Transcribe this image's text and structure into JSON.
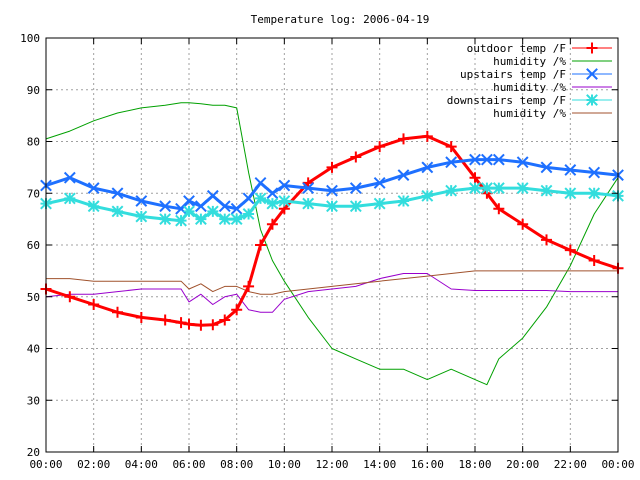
{
  "chart_data": {
    "type": "line",
    "title": "Temperature log: 2006-04-19",
    "xlabel": "",
    "ylabel": "",
    "ylim": [
      20,
      100
    ],
    "xlim": [
      "00:00",
      "24:00"
    ],
    "x_tick_labels": [
      "00:00",
      "02:00",
      "04:00",
      "06:00",
      "08:00",
      "10:00",
      "12:00",
      "14:00",
      "16:00",
      "18:00",
      "20:00",
      "22:00",
      "00:00"
    ],
    "y_tick_labels": [
      "100",
      "90",
      "80",
      "70",
      "60",
      "50",
      "40",
      "30",
      "20"
    ],
    "grid": true,
    "legend_position": "top-right",
    "x": [
      "00:00",
      "01:00",
      "02:00",
      "03:00",
      "04:00",
      "05:00",
      "05:40",
      "06:00",
      "06:30",
      "07:00",
      "07:30",
      "08:00",
      "08:30",
      "09:00",
      "09:30",
      "10:00",
      "11:00",
      "12:00",
      "13:00",
      "14:00",
      "15:00",
      "16:00",
      "17:00",
      "18:00",
      "18:30",
      "19:00",
      "20:00",
      "21:00",
      "22:00",
      "23:00",
      "24:00"
    ],
    "series": [
      {
        "name": "outdoor temp /F",
        "color": "#ff0000",
        "marker": "plus",
        "values": [
          51.5,
          50,
          48.5,
          47,
          46,
          45.5,
          45,
          44.7,
          44.5,
          44.6,
          45.5,
          47.5,
          52,
          60,
          64,
          67,
          72,
          75,
          77,
          79,
          80.5,
          81,
          79,
          73,
          70,
          67,
          64,
          61,
          59,
          57,
          55.5
        ]
      },
      {
        "name": "humidity /%",
        "color": "#00a000",
        "marker": "none",
        "values": [
          80.5,
          82,
          84,
          85.5,
          86.5,
          87,
          87.5,
          87.5,
          87.3,
          87,
          87,
          86.5,
          74,
          63,
          57,
          53,
          46,
          40,
          38,
          36,
          36,
          34,
          36,
          34,
          33,
          38,
          42,
          48,
          56,
          66,
          73
        ]
      },
      {
        "name": "upstairs temp /F",
        "color": "#1e70ff",
        "marker": "x",
        "values": [
          71.5,
          73,
          71,
          70,
          68.5,
          67.5,
          67,
          68.5,
          67.5,
          69.5,
          67.5,
          67,
          69,
          72,
          70,
          71.5,
          71,
          70.5,
          71,
          72,
          73.5,
          75,
          76,
          76.5,
          76.5,
          76.5,
          76,
          75,
          74.5,
          74,
          73.5
        ]
      },
      {
        "name": "humidity /%",
        "color": "#9900cc",
        "marker": "none",
        "values": [
          50,
          50.5,
          50.5,
          51,
          51.5,
          51.5,
          51.5,
          49,
          50.5,
          48.5,
          50,
          50.5,
          47.5,
          47,
          47,
          49.5,
          51,
          51.5,
          52,
          53.5,
          54.5,
          54.5,
          51.5,
          51.2,
          51.2,
          51.2,
          51.2,
          51.2,
          51,
          51,
          51
        ]
      },
      {
        "name": "downstairs temp /F",
        "color": "#33dddd",
        "marker": "star",
        "values": [
          68,
          69,
          67.5,
          66.5,
          65.5,
          65,
          64.7,
          66.5,
          65,
          66.5,
          65,
          65,
          66,
          69,
          68,
          68.5,
          68,
          67.5,
          67.5,
          68,
          68.5,
          69.5,
          70.5,
          71,
          71,
          71,
          71,
          70.5,
          70,
          70,
          69.5
        ]
      },
      {
        "name": "humidity /%",
        "color": "#a0522d",
        "marker": "none",
        "values": [
          53.5,
          53.5,
          53,
          53,
          53,
          53,
          53,
          51.5,
          52.5,
          51,
          52,
          52,
          51,
          50.5,
          50.5,
          51,
          51.5,
          52,
          52.5,
          53,
          53.5,
          54,
          54.5,
          55,
          55,
          55,
          55,
          55,
          55,
          55,
          55
        ]
      }
    ]
  }
}
